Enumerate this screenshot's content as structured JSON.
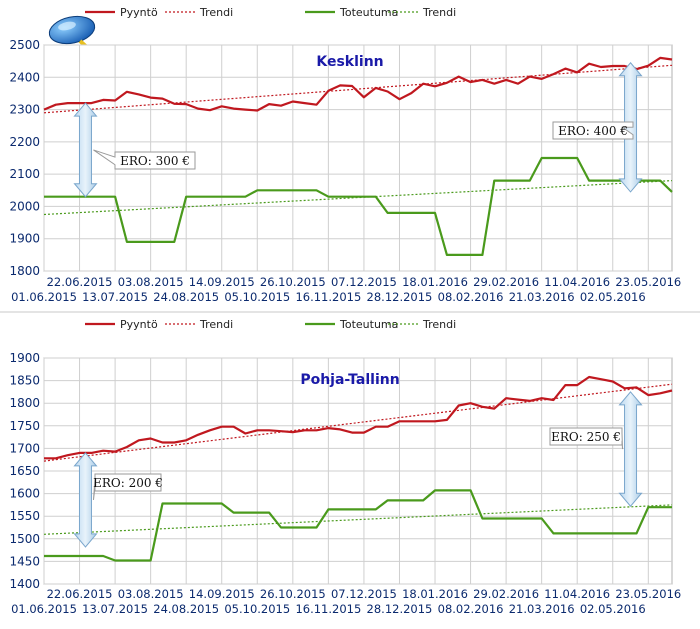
{
  "chart_data": [
    {
      "type": "line",
      "title": "Kesklinn",
      "ylim": [
        1800,
        2500
      ],
      "yticks": [
        1800,
        1900,
        2000,
        2100,
        2200,
        2300,
        2400,
        2500
      ],
      "grid": true,
      "legend": {
        "placement": "top",
        "entries": [
          "Pyyntö",
          "Trendi",
          "Toteutuma",
          "Trendi"
        ]
      },
      "x_labels": [
        {
          "week": 0,
          "label": "01.06.2015"
        },
        {
          "week": 3,
          "label": "22.06.2015"
        },
        {
          "week": 6,
          "label": "13.07.2015"
        },
        {
          "week": 9,
          "label": "03.08.2015"
        },
        {
          "week": 12,
          "label": "24.08.2015"
        },
        {
          "week": 15,
          "label": "14.09.2015"
        },
        {
          "week": 18,
          "label": "05.10.2015"
        },
        {
          "week": 21,
          "label": "26.10.2015"
        },
        {
          "week": 24,
          "label": "16.11.2015"
        },
        {
          "week": 27,
          "label": "07.12.2015"
        },
        {
          "week": 30,
          "label": "28.12.2015"
        },
        {
          "week": 33,
          "label": "18.01.2016"
        },
        {
          "week": 36,
          "label": "08.02.2016"
        },
        {
          "week": 39,
          "label": "29.02.2016"
        },
        {
          "week": 42,
          "label": "21.03.2016"
        },
        {
          "week": 45,
          "label": "11.04.2016"
        },
        {
          "week": 48,
          "label": "02.05.2016"
        },
        {
          "week": 51,
          "label": "23.05.2016"
        }
      ],
      "series": [
        {
          "name": "Pyyntö",
          "color": "#c0181f",
          "style": "solid",
          "values": [
            2300,
            2315,
            2320,
            2320,
            2320,
            2330,
            2328,
            2355,
            2347,
            2337,
            2334,
            2318,
            2317,
            2303,
            2298,
            2310,
            2303,
            2300,
            2297,
            2317,
            2312,
            2325,
            2320,
            2315,
            2358,
            2375,
            2373,
            2338,
            2367,
            2356,
            2332,
            2351,
            2380,
            2372,
            2383,
            2402,
            2385,
            2392,
            2380,
            2392,
            2380,
            2402,
            2395,
            2410,
            2427,
            2415,
            2442,
            2432,
            2435,
            2435,
            2425,
            2436,
            2460,
            2455
          ]
        },
        {
          "name": "Trendi",
          "color": "#c0181f",
          "style": "dotted",
          "values": [
            2290,
            2437
          ]
        },
        {
          "name": "Toteutuma",
          "color": "#4a9a1c",
          "style": "solid",
          "values": [
            2030,
            2030,
            2030,
            2030,
            2030,
            2030,
            2030,
            1890,
            1890,
            1890,
            1890,
            1890,
            2030,
            2030,
            2030,
            2030,
            2030,
            2030,
            2050,
            2050,
            2050,
            2050,
            2050,
            2050,
            2030,
            2030,
            2030,
            2030,
            2030,
            1980,
            1980,
            1980,
            1980,
            1980,
            1850,
            1850,
            1850,
            1850,
            2080,
            2080,
            2080,
            2080,
            2150,
            2150,
            2150,
            2150,
            2080,
            2080,
            2080,
            2080,
            2080,
            2080,
            2080,
            2045
          ]
        },
        {
          "name": "Trendi",
          "color": "#4a9a1c",
          "style": "dotted",
          "values": [
            1975,
            2080
          ]
        }
      ],
      "annotations": [
        {
          "label": "ERO: 300 €",
          "week": 3.5,
          "from": 2030,
          "to": 2320
        },
        {
          "label": "ERO: 400 €",
          "week": 49.5,
          "from": 2045,
          "to": 2445
        }
      ]
    },
    {
      "type": "line",
      "title": "Pohja-Tallinn",
      "ylim": [
        1400,
        1900
      ],
      "yticks": [
        1400,
        1450,
        1500,
        1550,
        1600,
        1650,
        1700,
        1750,
        1800,
        1850,
        1900
      ],
      "grid": true,
      "legend": {
        "placement": "top",
        "entries": [
          "Pyyntö",
          "Trendi",
          "Toteutuma",
          "Trendi"
        ]
      },
      "x_labels": [
        {
          "week": 0,
          "label": "01.06.2015"
        },
        {
          "week": 3,
          "label": "22.06.2015"
        },
        {
          "week": 6,
          "label": "13.07.2015"
        },
        {
          "week": 9,
          "label": "03.08.2015"
        },
        {
          "week": 12,
          "label": "24.08.2015"
        },
        {
          "week": 15,
          "label": "14.09.2015"
        },
        {
          "week": 18,
          "label": "05.10.2015"
        },
        {
          "week": 21,
          "label": "26.10.2015"
        },
        {
          "week": 24,
          "label": "16.11.2015"
        },
        {
          "week": 27,
          "label": "07.12.2015"
        },
        {
          "week": 30,
          "label": "28.12.2015"
        },
        {
          "week": 33,
          "label": "18.01.2016"
        },
        {
          "week": 36,
          "label": "08.02.2016"
        },
        {
          "week": 39,
          "label": "29.02.2016"
        },
        {
          "week": 42,
          "label": "21.03.2016"
        },
        {
          "week": 45,
          "label": "11.04.2016"
        },
        {
          "week": 48,
          "label": "02.05.2016"
        },
        {
          "week": 51,
          "label": "23.05.2016"
        }
      ],
      "series": [
        {
          "name": "Pyyntö",
          "color": "#c0181f",
          "style": "solid",
          "values": [
            1678,
            1678,
            1685,
            1690,
            1690,
            1695,
            1693,
            1703,
            1718,
            1722,
            1713,
            1713,
            1718,
            1730,
            1740,
            1748,
            1748,
            1733,
            1740,
            1740,
            1738,
            1736,
            1740,
            1740,
            1745,
            1742,
            1735,
            1735,
            1748,
            1748,
            1760,
            1760,
            1760,
            1760,
            1763,
            1795,
            1800,
            1792,
            1788,
            1811,
            1808,
            1805,
            1811,
            1807,
            1840,
            1840,
            1858,
            1853,
            1848,
            1833,
            1835,
            1818,
            1822,
            1828
          ]
        },
        {
          "name": "Trendi",
          "color": "#c0181f",
          "style": "dotted",
          "values": [
            1672,
            1842
          ]
        },
        {
          "name": "Toteutuma",
          "color": "#4a9a1c",
          "style": "solid",
          "values": [
            1462,
            1462,
            1462,
            1462,
            1462,
            1462,
            1452,
            1452,
            1452,
            1452,
            1578,
            1578,
            1578,
            1578,
            1578,
            1578,
            1558,
            1558,
            1558,
            1558,
            1525,
            1525,
            1525,
            1525,
            1565,
            1565,
            1565,
            1565,
            1565,
            1585,
            1585,
            1585,
            1585,
            1607,
            1607,
            1607,
            1607,
            1545,
            1545,
            1545,
            1545,
            1545,
            1545,
            1512,
            1512,
            1512,
            1512,
            1512,
            1512,
            1512,
            1512,
            1570,
            1570,
            1570
          ]
        },
        {
          "name": "Trendi",
          "color": "#4a9a1c",
          "style": "dotted",
          "values": [
            1510,
            1575
          ]
        }
      ],
      "annotations": [
        {
          "label": "ERO: 200 €",
          "week": 3.5,
          "from": 1482,
          "to": 1690
        },
        {
          "label": "ERO: 250 €",
          "week": 49.5,
          "from": 1572,
          "to": 1825
        }
      ]
    }
  ]
}
